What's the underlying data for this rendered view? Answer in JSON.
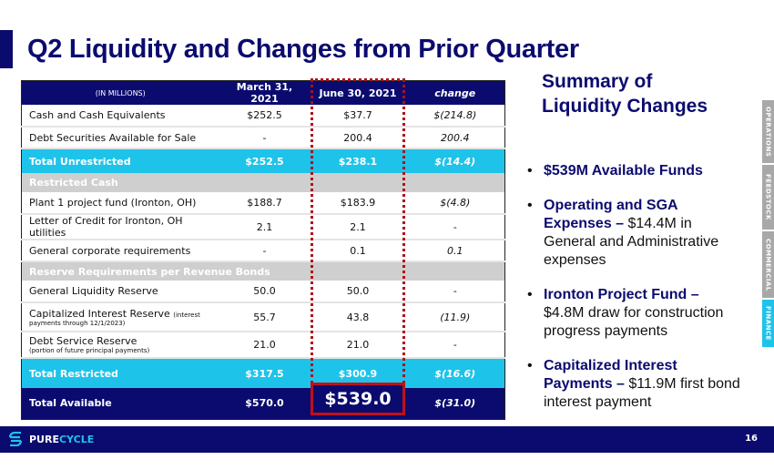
{
  "title": "Q2 Liquidity and Changes from Prior Quarter",
  "table": {
    "headers": [
      "(IN MILLIONS)",
      "March 31, 2021",
      "June 30, 2021",
      "change"
    ],
    "rows": [
      {
        "label": "Cash and Cash Equivalents",
        "mar": "$252.5",
        "jun": "$37.7",
        "change": "$(214.8)"
      },
      {
        "label": "Debt Securities Available for Sale",
        "mar": "-",
        "jun": "200.4",
        "change": "200.4"
      },
      {
        "label": "Total Unrestricted",
        "mar": "$252.5",
        "jun": "$238.1",
        "change": "$(14.4)"
      },
      {
        "label": "Restricted Cash"
      },
      {
        "label": "Plant 1 project fund (Ironton, OH)",
        "mar": "$188.7",
        "jun": "$183.9",
        "change": "$(4.8)"
      },
      {
        "label": "Letter of Credit for Ironton, OH utilities",
        "mar": "2.1",
        "jun": "2.1",
        "change": "-"
      },
      {
        "label": "General corporate requirements",
        "mar": "-",
        "jun": "0.1",
        "change": "0.1"
      },
      {
        "label": "Reserve Requirements per Revenue Bonds"
      },
      {
        "label": "General Liquidity Reserve",
        "mar": "50.0",
        "jun": "50.0",
        "change": "-"
      },
      {
        "label": "Capitalized Interest Reserve",
        "note_a": "(interest",
        "note_b": "payments through 12/1/2023)",
        "mar": "55.7",
        "jun": "43.8",
        "change": "(11.9)"
      },
      {
        "label": "Debt Service Reserve",
        "note": "(portion of future principal payments)",
        "mar": "21.0",
        "jun": "21.0",
        "change": "-"
      },
      {
        "label": "Total Restricted",
        "mar": "$317.5",
        "jun": "$300.9",
        "change": "$(16.6)"
      },
      {
        "label": "Total Available",
        "mar": "$570.0",
        "jun": "$539.0",
        "change": "$(31.0)"
      }
    ]
  },
  "summary": {
    "title_line1": "Summary of",
    "title_line2": "Liquidity Changes",
    "bullets": [
      {
        "bold": "$539M Available Funds",
        "text": ""
      },
      {
        "bold": "Operating and SGA Expenses –",
        "text": " $14.4M in General and Administrative expenses"
      },
      {
        "bold": "Ironton Project Fund –",
        "text": " $4.8M draw for construction progress payments"
      },
      {
        "bold": "Capitalized Interest Payments –",
        "text": " $11.9M first bond interest payment"
      }
    ]
  },
  "side_tabs": [
    {
      "label": "OPERATIONS",
      "active": false
    },
    {
      "label": "FEEDSTOCK",
      "active": false
    },
    {
      "label": "COMMERCIAL",
      "active": false
    },
    {
      "label": "FINANCE",
      "active": true
    }
  ],
  "footer": {
    "logo_a": "PURE",
    "logo_b": "CYCLE",
    "page": "16"
  },
  "colors": {
    "navy": "#0b0b6f",
    "cyan": "#1ec3ea",
    "highlight": "#c0101a",
    "section_gray": "#cfcfcf"
  }
}
